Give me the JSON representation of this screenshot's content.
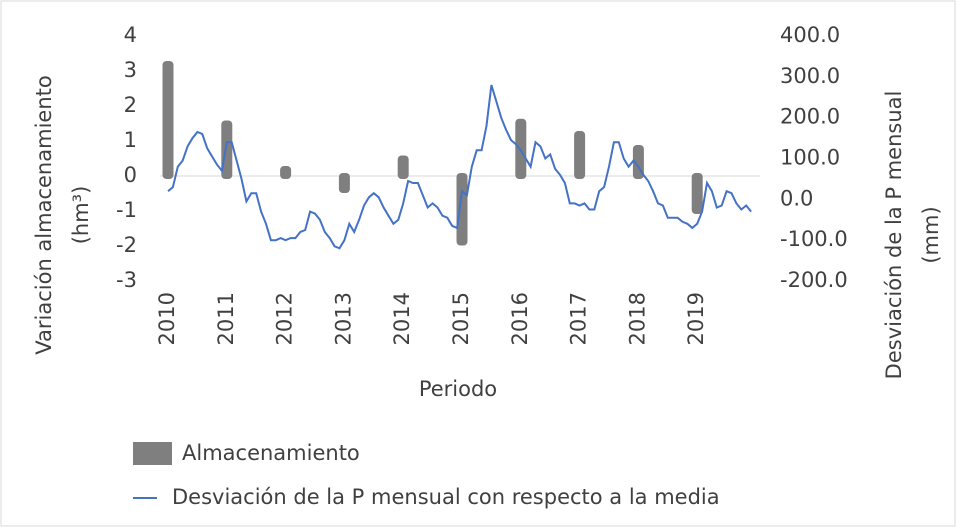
{
  "chart_data": {
    "type": "bar-line",
    "xlabel": "Periodo",
    "ylabel": [
      "Variación almacenamiento",
      "(hm³)"
    ],
    "y2label": [
      "Desviación de la P mensual",
      "(mm)"
    ],
    "categories": [
      "2010",
      null,
      null,
      null,
      null,
      null,
      null,
      null,
      null,
      null,
      null,
      null,
      "2011",
      null,
      null,
      null,
      null,
      null,
      null,
      null,
      null,
      null,
      null,
      null,
      "2012",
      null,
      null,
      null,
      null,
      null,
      null,
      null,
      null,
      null,
      null,
      null,
      "2013",
      null,
      null,
      null,
      null,
      null,
      null,
      null,
      null,
      null,
      null,
      null,
      "2014",
      null,
      null,
      null,
      null,
      null,
      null,
      null,
      null,
      null,
      null,
      null,
      "2015",
      null,
      null,
      null,
      null,
      null,
      null,
      null,
      null,
      null,
      null,
      null,
      "2016",
      null,
      null,
      null,
      null,
      null,
      null,
      null,
      null,
      null,
      null,
      null,
      "2017",
      null,
      null,
      null,
      null,
      null,
      null,
      null,
      null,
      null,
      null,
      null,
      "2018",
      null,
      null,
      null,
      null,
      null,
      null,
      null,
      null,
      null,
      null,
      null,
      "2019",
      null,
      null,
      null,
      null,
      null,
      null,
      null,
      null,
      null,
      null,
      null
    ],
    "series": [
      {
        "name": "Almacenamiento",
        "type": "bar",
        "color": "#7f7f7f",
        "values": [
          3.2,
          null,
          null,
          null,
          null,
          null,
          null,
          null,
          null,
          null,
          null,
          null,
          1.5,
          null,
          null,
          null,
          null,
          null,
          null,
          null,
          null,
          null,
          null,
          null,
          0.2,
          null,
          null,
          null,
          null,
          null,
          null,
          null,
          null,
          null,
          null,
          null,
          -0.4,
          null,
          null,
          null,
          null,
          null,
          null,
          null,
          null,
          null,
          null,
          null,
          0.5,
          null,
          null,
          null,
          null,
          null,
          null,
          null,
          null,
          null,
          null,
          null,
          -1.9,
          null,
          null,
          null,
          null,
          null,
          null,
          null,
          null,
          null,
          null,
          null,
          1.55,
          null,
          null,
          null,
          null,
          null,
          null,
          null,
          null,
          null,
          null,
          null,
          1.2,
          null,
          null,
          null,
          null,
          null,
          null,
          null,
          null,
          null,
          null,
          null,
          0.8,
          null,
          null,
          null,
          null,
          null,
          null,
          null,
          null,
          null,
          null,
          null,
          -1.0,
          null,
          null,
          null,
          null,
          null,
          null,
          null,
          null,
          null,
          null,
          null
        ]
      },
      {
        "name": "Desviación de la P mensual con respecto a la media",
        "type": "line",
        "axis": "y2",
        "color": "#4472c4",
        "values": [
          20,
          30,
          80,
          95,
          130,
          150,
          165,
          160,
          125,
          105,
          85,
          70,
          140,
          140,
          95,
          50,
          -5,
          15,
          15,
          -30,
          -60,
          -100,
          -100,
          -95,
          -100,
          -95,
          -95,
          -80,
          -75,
          -30,
          -35,
          -50,
          -80,
          -95,
          -115,
          -120,
          -100,
          -60,
          -80,
          -50,
          -15,
          5,
          15,
          5,
          -20,
          -40,
          -60,
          -50,
          -10,
          45,
          40,
          40,
          10,
          -20,
          -10,
          -20,
          -40,
          -45,
          -65,
          -70,
          20,
          10,
          80,
          120,
          120,
          180,
          280,
          240,
          200,
          170,
          145,
          135,
          120,
          100,
          80,
          140,
          130,
          100,
          110,
          75,
          60,
          40,
          -10,
          -10,
          -15,
          -10,
          -25,
          -25,
          20,
          30,
          80,
          140,
          140,
          100,
          80,
          95,
          80,
          60,
          45,
          20,
          -10,
          -15,
          -45,
          -45,
          -45,
          -55,
          -60,
          -70,
          -60,
          -30,
          40,
          20,
          -20,
          -15,
          20,
          15,
          -10,
          -25,
          -15,
          -30
        ]
      }
    ],
    "ylim": [
      -3,
      4
    ],
    "yticks": [
      -3,
      -2,
      -1,
      0,
      1,
      2,
      3,
      4
    ],
    "y2lim": [
      -200,
      400
    ],
    "y2ticks": [
      {
        "value": -200,
        "label": "-200.0"
      },
      {
        "value": -100,
        "label": "-100.0"
      },
      {
        "value": 0,
        "label": "0.0"
      },
      {
        "value": 100,
        "label": "100.0"
      },
      {
        "value": 200,
        "label": "200.0"
      },
      {
        "value": 300,
        "label": "300.0"
      },
      {
        "value": 400,
        "label": "400.0"
      }
    ],
    "grid": false,
    "legend": "bottom"
  }
}
